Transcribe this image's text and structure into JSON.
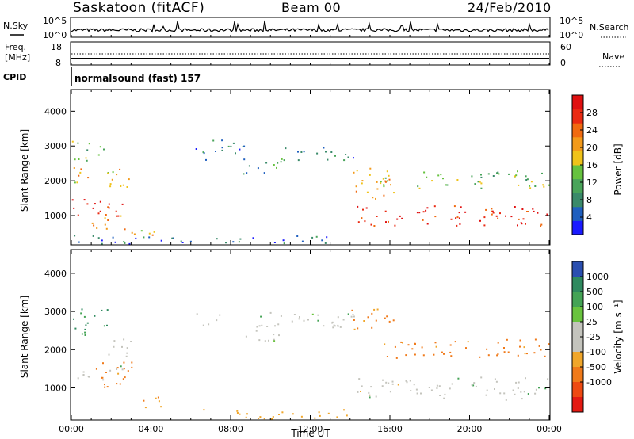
{
  "header": {
    "title": "Saskatoon (fitACF)",
    "beam": "Beam 00",
    "date": "24/Feb/2010"
  },
  "aux_panels": {
    "nsky_label": "N.Sky",
    "nsearch_label": "N.Search",
    "noise_ticks": [
      "10^5",
      "10^0"
    ],
    "freq_label": "Freq.",
    "freq_unit": "[MHz]",
    "freq_ticks": [
      "18",
      "8"
    ],
    "nave_label": "Nave",
    "nave_ticks": [
      "60",
      "0"
    ],
    "cpid_label": "CPID",
    "cpid_value": "normalsound (fast) 157"
  },
  "colors": {
    "power_scale": [
      "#1a1aff",
      "#1f5fbf",
      "#3a8a6a",
      "#49a45a",
      "#66c23f",
      "#f0c31a",
      "#f39a1a",
      "#f06a10",
      "#ea2a12",
      "#e01010"
    ],
    "velocity_scale": [
      "#2a4fb0",
      "#2f8a5f",
      "#44a355",
      "#69c33e",
      "#c4c4bd",
      "#c4c4bd",
      "#f0a62a",
      "#f07a1a",
      "#ee4a12",
      "#e41a12"
    ]
  },
  "chart_data": [
    {
      "type": "heatmap",
      "quantity": "Power",
      "ylabel": "Slant Range [km]",
      "ylim": [
        180,
        4600
      ],
      "yticks": [
        "1000",
        "2000",
        "3000",
        "4000"
      ],
      "xlim": [
        "00:00",
        "24:00"
      ],
      "colorbar_label": "Power [dB]",
      "colorbar_range": [
        0,
        32
      ],
      "colorbar_ticks": [
        "4",
        "8",
        "12",
        "16",
        "20",
        "24",
        "28"
      ],
      "scatter_regions": [
        {
          "t": [
            0.0,
            2.9
          ],
          "range": [
            1800,
            2400
          ],
          "level": 20
        },
        {
          "t": [
            0.0,
            1.6
          ],
          "range": [
            2600,
            3200
          ],
          "level": 14
        },
        {
          "t": [
            0.0,
            2.6
          ],
          "range": [
            900,
            1500
          ],
          "level": 28
        },
        {
          "t": [
            1.0,
            2.8
          ],
          "range": [
            600,
            1100
          ],
          "level": 22
        },
        {
          "t": [
            3.0,
            4.6
          ],
          "range": [
            450,
            800
          ],
          "level": 18
        },
        {
          "t": [
            6.2,
            8.8
          ],
          "range": [
            2600,
            3200
          ],
          "level": 8
        },
        {
          "t": [
            8.6,
            10.6
          ],
          "range": [
            2200,
            2700
          ],
          "level": 10
        },
        {
          "t": [
            10.6,
            14.2
          ],
          "range": [
            2600,
            3000
          ],
          "level": 8
        },
        {
          "t": [
            14.2,
            24.0
          ],
          "range": [
            700,
            1300
          ],
          "level": 28
        },
        {
          "t": [
            14.0,
            16.2
          ],
          "range": [
            1500,
            2400
          ],
          "level": 20
        },
        {
          "t": [
            15.5,
            24.0
          ],
          "range": [
            1800,
            2300
          ],
          "level": 14
        },
        {
          "t": [
            0.0,
            13.0
          ],
          "range": [
            200,
            450
          ],
          "level": 6
        }
      ]
    },
    {
      "type": "heatmap",
      "quantity": "Velocity",
      "ylabel": "Slant Range [km]",
      "ylim": [
        180,
        4600
      ],
      "yticks": [
        "1000",
        "2000",
        "3000",
        "4000"
      ],
      "xlim": [
        "00:00",
        "24:00"
      ],
      "xticks": [
        "00:00",
        "04:00",
        "08:00",
        "12:00",
        "16:00",
        "20:00",
        "00:00"
      ],
      "xlabel": "Time UT",
      "colorbar_label": "Velocity [m s⁻¹]",
      "colorbar_ticks": [
        "1000",
        "500",
        "100",
        "25",
        "-25",
        "-100",
        "-500",
        "-1000"
      ],
      "scatter_regions": [
        {
          "t": [
            0.0,
            2.8
          ],
          "range": [
            1200,
            1600
          ],
          "level": 0
        },
        {
          "t": [
            1.2,
            3.2
          ],
          "range": [
            900,
            1700
          ],
          "level": -500
        },
        {
          "t": [
            0.0,
            1.8
          ],
          "range": [
            2400,
            3200
          ],
          "level": 300
        },
        {
          "t": [
            1.6,
            3.0
          ],
          "range": [
            1700,
            2300
          ],
          "level": 0
        },
        {
          "t": [
            3.2,
            4.8
          ],
          "range": [
            450,
            800
          ],
          "level": -300
        },
        {
          "t": [
            6.2,
            14.2
          ],
          "range": [
            2600,
            3000
          ],
          "level": 0
        },
        {
          "t": [
            8.6,
            10.6
          ],
          "range": [
            2200,
            2700
          ],
          "level": 0
        },
        {
          "t": [
            14.2,
            24.0
          ],
          "range": [
            700,
            1300
          ],
          "level": 0
        },
        {
          "t": [
            14.0,
            16.2
          ],
          "range": [
            2500,
            3100
          ],
          "level": -300
        },
        {
          "t": [
            15.5,
            24.0
          ],
          "range": [
            1800,
            2300
          ],
          "level": -400
        },
        {
          "t": [
            6.0,
            14.0
          ],
          "range": [
            200,
            450
          ],
          "level": -150
        }
      ]
    }
  ]
}
